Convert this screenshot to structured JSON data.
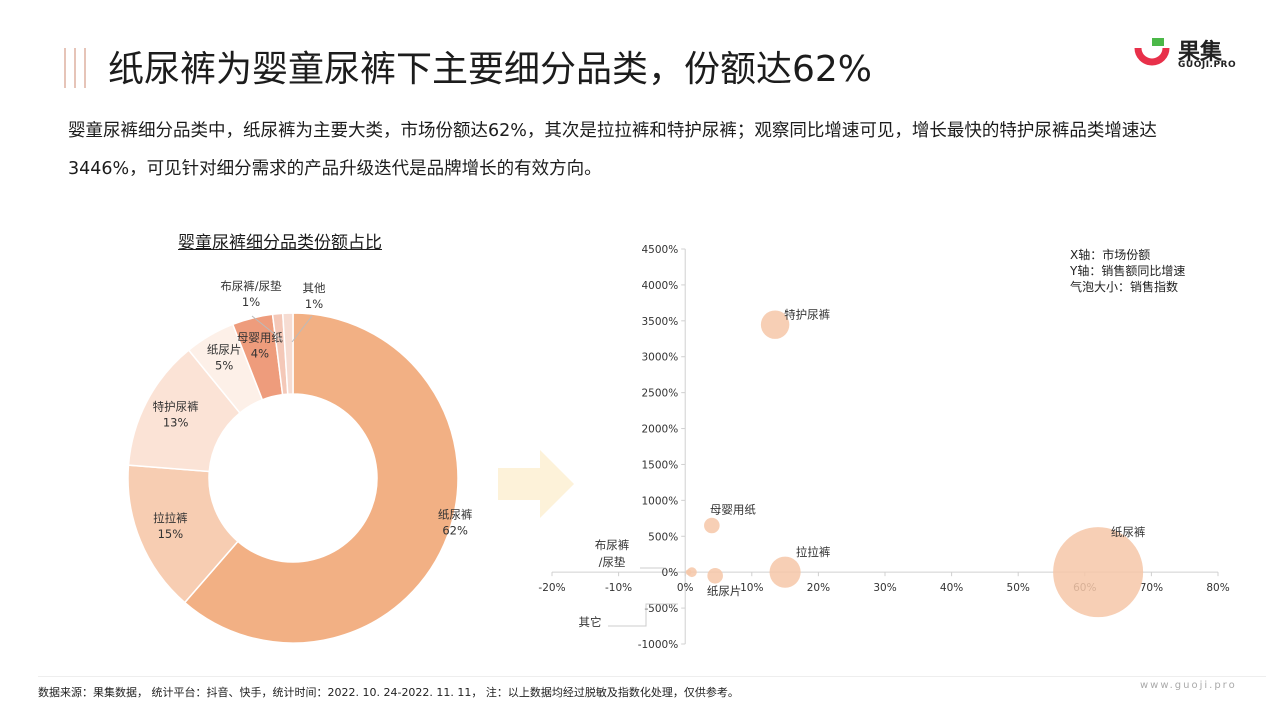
{
  "page": {
    "title": "纸尿裤为婴童尿裤下主要细分品类，份额达62%",
    "description": "婴童尿裤细分品类中，纸尿裤为主要大类，市场份额达62%，其次是拉拉裤和特护尿裤；观察同比增速可见，增长最快的特护尿裤品类增速达3446%，可见针对细分需求的产品升级迭代是品牌增长的有效方向。",
    "footer": "数据来源：果集数据，  统计平台：抖音、快手，统计时间：2022. 10. 24-2022. 11. 11，  注：以上数据均经过脱敏及指数化处理，仅供参考。",
    "site": "www.guoji.pro",
    "logo": {
      "name": "果集",
      "sub": "GUOJI.PRO",
      "colors": {
        "red": "#e8304a",
        "green": "#4bb848"
      }
    }
  },
  "chart_data": [
    {
      "type": "pie",
      "variant": "donut",
      "title": "婴童尿裤细分品类份额占比",
      "categories": [
        "纸尿裤",
        "拉拉裤",
        "特护尿裤",
        "纸尿片",
        "母婴用纸",
        "布尿裤/尿垫",
        "其他"
      ],
      "values": [
        62,
        15,
        13,
        5,
        4,
        1,
        1
      ],
      "labels": [
        "62%",
        "15%",
        "13%",
        "5%",
        "4%",
        "1%",
        "1%"
      ],
      "colors": [
        "#f2b084",
        "#f7cdb2",
        "#fbe3d6",
        "#fdf0e8",
        "#ee9c7c",
        "#f4c8b8",
        "#f6dcd2"
      ]
    },
    {
      "type": "scatter",
      "variant": "bubble",
      "legend_note": [
        "X轴：市场份额",
        "Y轴：销售额同比增速",
        "气泡大小：销售指数"
      ],
      "xlim": [
        -20,
        80
      ],
      "ylim": [
        -1000,
        4500
      ],
      "x_ticks": [
        "-20%",
        "-10%",
        "0%",
        "10%",
        "20%",
        "30%",
        "40%",
        "50%",
        "60%",
        "70%",
        "80%"
      ],
      "y_ticks": [
        "-1000%",
        "-500%",
        "0%",
        "500%",
        "1000%",
        "1500%",
        "2000%",
        "2500%",
        "3000%",
        "3500%",
        "4000%",
        "4500%"
      ],
      "points": [
        {
          "name": "纸尿裤",
          "x": 62,
          "y": 0,
          "size": 100
        },
        {
          "name": "拉拉裤",
          "x": 15,
          "y": 0,
          "size": 12
        },
        {
          "name": "特护尿裤",
          "x": 13.5,
          "y": 3446,
          "size": 10
        },
        {
          "name": "纸尿片",
          "x": 4.5,
          "y": -50,
          "size": 3
        },
        {
          "name": "母婴用纸",
          "x": 4,
          "y": 650,
          "size": 3
        },
        {
          "name": "布尿裤/尿垫",
          "x": 1,
          "y": 0,
          "size": 1.2
        },
        {
          "name": "其它",
          "x": 0.5,
          "y": 0,
          "size": 0.4
        }
      ],
      "point_labels": {
        "纸尿裤": "纸尿裤",
        "拉拉裤": "拉拉裤",
        "特护尿裤": "特护尿裤",
        "纸尿片": "纸尿片",
        "母婴用纸": "母婴用纸",
        "布尿裤/尿垫": [
          "布尿裤",
          "/尿垫"
        ],
        "其它": "其它"
      },
      "bubble_color": "#f6c7a8"
    }
  ]
}
